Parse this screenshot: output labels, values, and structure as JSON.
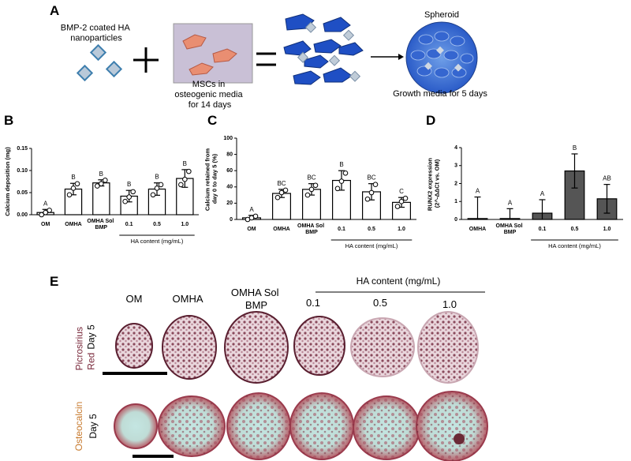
{
  "panel_a": {
    "label": "A",
    "nanoparticles": "BMP-2 coated HA nanoparticles",
    "mscs": "MSCs in osteogenic media for 14 days",
    "spheroid": "Spheroid",
    "growth": "Growth media for 5 days"
  },
  "chart_data": [
    {
      "type": "bar",
      "panel_label": "B",
      "ylabel": "Calcium deposition (mg)",
      "categories": [
        "OM",
        "OMHA",
        "OMHA Sol BMP",
        "0.1",
        "0.5",
        "1.0"
      ],
      "values": [
        0.005,
        0.058,
        0.072,
        0.042,
        0.058,
        0.082
      ],
      "errors": [
        0.007,
        0.013,
        0.007,
        0.013,
        0.014,
        0.02
      ],
      "points": [
        [
          0.0,
          0.005,
          0.01
        ],
        [
          0.045,
          0.06,
          0.07
        ],
        [
          0.065,
          0.07,
          0.078
        ],
        [
          0.03,
          0.04,
          0.052
        ],
        [
          0.045,
          0.06,
          0.068
        ],
        [
          0.068,
          0.08,
          0.098
        ]
      ],
      "letters": [
        "A",
        "B",
        "B",
        "B",
        "B",
        "B"
      ],
      "colors": [
        "#ffffff",
        "#ffffff",
        "#ffffff",
        "#ffffff",
        "#ffffff",
        "#ffffff"
      ],
      "group_label": "HA content (mg/mL)",
      "ylim": [
        0,
        0.15
      ],
      "yticks": [
        {
          "value": 0,
          "label": "0.00"
        },
        {
          "value": 0.05,
          "label": "0.05"
        },
        {
          "value": 0.1,
          "label": "0.10"
        },
        {
          "value": 0.15,
          "label": "0.15"
        }
      ]
    },
    {
      "type": "bar",
      "panel_label": "C",
      "ylabel": "Calcium retained from day 0 to day 5 (%)",
      "categories": [
        "OM",
        "OMHA",
        "OMHA Sol BMP",
        "0.1",
        "0.5",
        "1.0"
      ],
      "values": [
        2,
        32,
        37,
        48,
        34,
        21
      ],
      "errors": [
        3,
        5,
        7,
        12,
        10,
        6
      ],
      "points": [
        [
          0,
          2,
          4
        ],
        [
          27,
          33,
          36
        ],
        [
          30,
          37,
          42
        ],
        [
          38,
          47,
          57
        ],
        [
          25,
          33,
          43
        ],
        [
          16,
          22,
          26
        ]
      ],
      "letters": [
        "A",
        "BC",
        "BC",
        "B",
        "BC",
        "C"
      ],
      "colors": [
        "#ffffff",
        "#ffffff",
        "#ffffff",
        "#ffffff",
        "#ffffff",
        "#ffffff"
      ],
      "group_label": "HA content (mg/mL)",
      "ylim": [
        0,
        100
      ],
      "yticks": [
        0,
        20,
        40,
        60,
        80,
        100
      ]
    },
    {
      "type": "bar",
      "panel_label": "D",
      "ylabel": "RUNX2 expression (2^-ΔΔCt vs. OM)",
      "categories": [
        "OMHA",
        "OMHA Sol BMP",
        "0.1",
        "0.5",
        "1.0"
      ],
      "values": [
        0.05,
        0.05,
        0.35,
        2.7,
        1.15
      ],
      "errors": [
        1.2,
        0.55,
        0.75,
        0.95,
        0.8
      ],
      "letters": [
        "A",
        "A",
        "A",
        "B",
        "AB"
      ],
      "colors": [
        "#ffffff",
        "#ffffff",
        "#555555",
        "#555555",
        "#555555"
      ],
      "group_label": "HA content (mg/mL)",
      "ylim": [
        0,
        4
      ],
      "yticks": [
        0,
        1,
        2,
        3,
        4
      ]
    }
  ],
  "panel_e": {
    "label": "E",
    "columns": [
      "OM",
      "OMHA",
      "OMHA Sol BMP",
      "0.1",
      "0.5",
      "1.0"
    ],
    "column_group": "HA content (mg/mL)",
    "rows": [
      {
        "stain": "Picrosirius Red",
        "time": "Day 5"
      },
      {
        "stain": "Osteocalcin",
        "time": "Day 5"
      }
    ]
  }
}
